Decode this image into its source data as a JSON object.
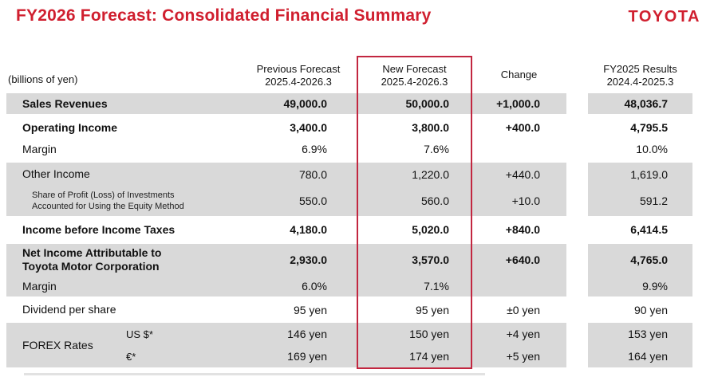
{
  "page": {
    "title": "FY2026 Forecast: Consolidated Financial Summary",
    "brand": "TOYOTA"
  },
  "colors": {
    "brand_red": "#d01f2f",
    "highlight_box_red": "#c22740",
    "row_gray": "#d9d9d9"
  },
  "table": {
    "unit_note": "(billions of yen)",
    "columns": {
      "previous": {
        "line1": "Previous Forecast",
        "line2": "2025.4-2026.3"
      },
      "new": {
        "line1": "New Forecast",
        "line2": "2025.4-2026.3"
      },
      "change": {
        "label": "Change"
      },
      "fy2025": {
        "line1": "FY2025 Results",
        "line2": "2024.4-2025.3"
      }
    },
    "rows": [
      {
        "label": "Sales Revenues",
        "label2": "",
        "previous": "49,000.0",
        "new": "50,000.0",
        "change": "+1,000.0",
        "fy2025": "48,036.7",
        "bold": true,
        "shaded": true,
        "sub": false
      },
      {
        "label": "Operating Income",
        "label2": "",
        "previous": "3,400.0",
        "new": "3,800.0",
        "change": "+400.0",
        "fy2025": "4,795.5",
        "bold": true,
        "shaded": false,
        "sub": false
      },
      {
        "label": "Margin",
        "label2": "",
        "previous": "6.9%",
        "new": "7.6%",
        "change": "",
        "fy2025": "10.0%",
        "bold": false,
        "shaded": false,
        "sub": false
      },
      {
        "label": "Other Income",
        "label2": "",
        "previous": "780.0",
        "new": "1,220.0",
        "change": "+440.0",
        "fy2025": "1,619.0",
        "bold": false,
        "shaded": true,
        "sub": false
      },
      {
        "label": "Share of Profit (Loss) of Investments",
        "label2": "Accounted for Using the Equity Method",
        "previous": "550.0",
        "new": "560.0",
        "change": "+10.0",
        "fy2025": "591.2",
        "bold": false,
        "shaded": true,
        "sub": true
      },
      {
        "label": "Income before Income Taxes",
        "label2": "",
        "previous": "4,180.0",
        "new": "5,020.0",
        "change": "+840.0",
        "fy2025": "6,414.5",
        "bold": true,
        "shaded": false,
        "sub": false
      },
      {
        "label": "Net Income Attributable to",
        "label2": "Toyota Motor Corporation",
        "previous": "2,930.0",
        "new": "3,570.0",
        "change": "+640.0",
        "fy2025": "4,765.0",
        "bold": true,
        "shaded": true,
        "sub": false
      },
      {
        "label": "Margin",
        "label2": "",
        "previous": "6.0%",
        "new": "7.1%",
        "change": "",
        "fy2025": "9.9%",
        "bold": false,
        "shaded": true,
        "sub": false
      },
      {
        "label": "Dividend per share",
        "label2": "",
        "previous": "95 yen",
        "new": "95 yen",
        "change": "±0 yen",
        "fy2025": "90 yen",
        "bold": false,
        "shaded": false,
        "sub": false
      }
    ],
    "forex": {
      "label": "FOREX Rates",
      "rows": [
        {
          "currency": "US $*",
          "previous": "146 yen",
          "new": "150 yen",
          "change": "+4 yen",
          "fy2025": "153 yen"
        },
        {
          "currency": "€*",
          "previous": "169 yen",
          "new": "174 yen",
          "change": "+5 yen",
          "fy2025": "164 yen"
        }
      ]
    }
  }
}
